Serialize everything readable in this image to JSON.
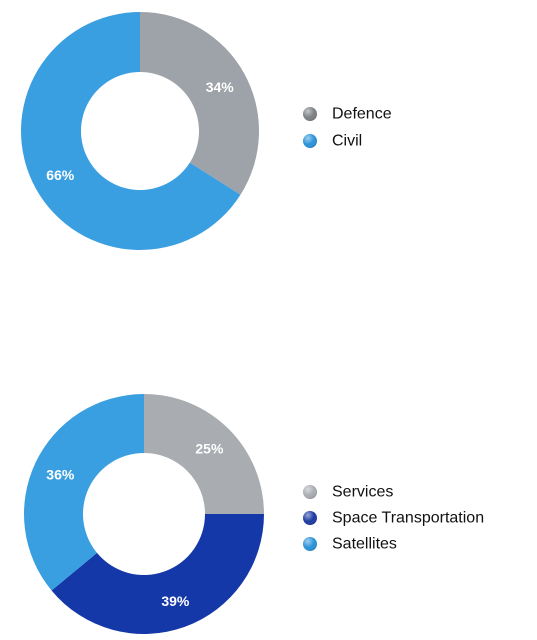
{
  "chart_data": [
    {
      "type": "pie",
      "title": "",
      "categories": [
        "Defence",
        "Civil"
      ],
      "values": [
        34,
        66
      ],
      "labels": [
        "34%",
        "66%"
      ],
      "colors": [
        "#9da3a8",
        "#3a9fe0"
      ],
      "legend_marker_colors": [
        "#7d8185",
        "#2a93da"
      ],
      "legend": "right",
      "donut": true
    },
    {
      "type": "pie",
      "title": "",
      "categories": [
        "Services",
        "Space Transportation",
        "Satellites"
      ],
      "values": [
        25,
        39,
        36
      ],
      "labels": [
        "25%",
        "39%",
        "36%"
      ],
      "colors": [
        "#a9adb2",
        "#1438a8",
        "#3a9fe0"
      ],
      "legend_marker_colors": [
        "#a9adb2",
        "#1c3aa3",
        "#2a93da"
      ],
      "legend": "right",
      "donut": true
    }
  ]
}
